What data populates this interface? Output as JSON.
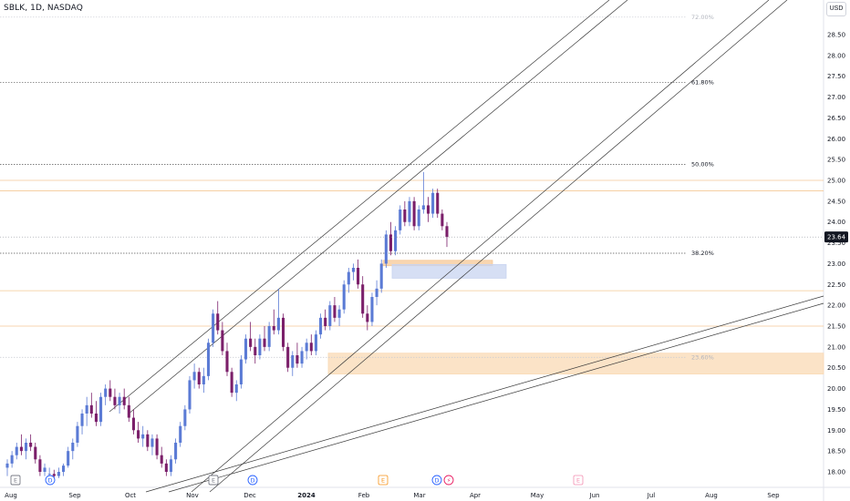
{
  "header": {
    "symbol": "SBLK, 1D, NASDAQ",
    "currency": "USD"
  },
  "price_axis": {
    "ticks": [
      "28.50",
      "28.00",
      "27.50",
      "27.00",
      "26.50",
      "26.00",
      "25.50",
      "25.00",
      "24.50",
      "24.00",
      "23.50",
      "23.00",
      "22.50",
      "22.00",
      "21.50",
      "21.00",
      "20.50",
      "20.00",
      "19.50",
      "19.00",
      "18.50",
      "18.00"
    ],
    "current_price": "23.64"
  },
  "time_axis": {
    "labels": [
      {
        "text": "Aug",
        "bold": false
      },
      {
        "text": "Sep",
        "bold": false
      },
      {
        "text": "Oct",
        "bold": false
      },
      {
        "text": "Nov",
        "bold": false
      },
      {
        "text": "Dec",
        "bold": false
      },
      {
        "text": "2024",
        "bold": true
      },
      {
        "text": "Feb",
        "bold": false
      },
      {
        "text": "Mar",
        "bold": false
      },
      {
        "text": "Apr",
        "bold": false
      },
      {
        "text": "May",
        "bold": false
      },
      {
        "text": "Jun",
        "bold": false
      },
      {
        "text": "Jul",
        "bold": false
      },
      {
        "text": "Aug",
        "bold": false
      },
      {
        "text": "Sep",
        "bold": false
      }
    ]
  },
  "fib_levels": [
    {
      "label": "72.00%",
      "price": 28.92,
      "faint": true
    },
    {
      "label": "61.80%",
      "price": 27.35,
      "faint": false
    },
    {
      "label": "50.00%",
      "price": 25.38,
      "faint": false
    },
    {
      "label": "38.20%",
      "price": 23.25,
      "faint": false
    },
    {
      "label": "23.60%",
      "price": 20.75,
      "faint": true
    }
  ],
  "horizontal_levels": [
    25.0,
    24.75,
    22.35,
    21.5
  ],
  "zones": [
    {
      "name": "upper-orange-zone",
      "price_top": 23.08,
      "price_bottom": 22.95,
      "color": "#f5c896"
    },
    {
      "name": "blue-zone",
      "price_top": 22.98,
      "price_bottom": 22.65,
      "color": "#c8d4f0"
    },
    {
      "name": "lower-orange-zone",
      "price_top": 20.85,
      "price_bottom": 20.35,
      "color": "#f9d9b4"
    }
  ],
  "events": [
    {
      "symbol": "E",
      "kind": "earnings",
      "color": "#787b86"
    },
    {
      "symbol": "D",
      "kind": "dividend",
      "color": "#2962ff"
    },
    {
      "symbol": "E",
      "kind": "earnings",
      "color": "#787b86"
    },
    {
      "symbol": "D",
      "kind": "dividend",
      "color": "#2962ff"
    },
    {
      "symbol": "E",
      "kind": "earnings",
      "color": "#f7931a"
    },
    {
      "symbol": "D",
      "kind": "dividend",
      "color": "#2962ff"
    },
    {
      "symbol": "⚡",
      "kind": "split",
      "color": "#e91e63"
    },
    {
      "symbol": "E",
      "kind": "earnings",
      "color": "#f48fb1"
    }
  ],
  "colors": {
    "up": "#5b7bd5",
    "down": "#7b1f6a",
    "trendline": "#3a3a3a",
    "level_orange": "#f5c896",
    "fib_dotted": "#555555",
    "price_tag": "#131722"
  },
  "chart_data": {
    "type": "candlestick",
    "title": "SBLK, 1D, NASDAQ",
    "unit": "USD",
    "ylim": [
      17.85,
      29.35
    ],
    "x_labels": [
      "Aug",
      "Sep",
      "Oct",
      "Nov",
      "Dec",
      "2024",
      "Feb",
      "Mar",
      "Apr",
      "May",
      "Jun",
      "Jul",
      "Aug",
      "Sep"
    ],
    "candles": [
      {
        "o": 18.1,
        "h": 18.3,
        "l": 17.9,
        "c": 18.2
      },
      {
        "o": 18.2,
        "h": 18.5,
        "l": 18.1,
        "c": 18.4
      },
      {
        "o": 18.4,
        "h": 18.7,
        "l": 18.3,
        "c": 18.6
      },
      {
        "o": 18.6,
        "h": 18.9,
        "l": 18.4,
        "c": 18.5
      },
      {
        "o": 18.5,
        "h": 18.8,
        "l": 18.3,
        "c": 18.7
      },
      {
        "o": 18.7,
        "h": 18.9,
        "l": 18.5,
        "c": 18.6
      },
      {
        "o": 18.6,
        "h": 18.7,
        "l": 18.2,
        "c": 18.3
      },
      {
        "o": 18.3,
        "h": 18.4,
        "l": 17.9,
        "c": 18.0
      },
      {
        "o": 18.0,
        "h": 18.2,
        "l": 17.9,
        "c": 18.1
      },
      {
        "o": 17.95,
        "h": 18.1,
        "l": 17.85,
        "c": 17.95
      },
      {
        "o": 17.95,
        "h": 18.05,
        "l": 17.85,
        "c": 17.9
      },
      {
        "o": 17.9,
        "h": 18.1,
        "l": 17.85,
        "c": 18.0
      },
      {
        "o": 18.0,
        "h": 18.2,
        "l": 17.9,
        "c": 18.15
      },
      {
        "o": 18.15,
        "h": 18.6,
        "l": 18.1,
        "c": 18.5
      },
      {
        "o": 18.5,
        "h": 18.8,
        "l": 18.3,
        "c": 18.7
      },
      {
        "o": 18.7,
        "h": 19.2,
        "l": 18.6,
        "c": 19.1
      },
      {
        "o": 19.1,
        "h": 19.5,
        "l": 18.9,
        "c": 19.4
      },
      {
        "o": 19.4,
        "h": 19.8,
        "l": 19.1,
        "c": 19.6
      },
      {
        "o": 19.6,
        "h": 19.9,
        "l": 19.3,
        "c": 19.4
      },
      {
        "o": 19.4,
        "h": 19.7,
        "l": 19.1,
        "c": 19.2
      },
      {
        "o": 19.2,
        "h": 19.9,
        "l": 19.1,
        "c": 19.8
      },
      {
        "o": 19.8,
        "h": 20.1,
        "l": 19.6,
        "c": 20.0
      },
      {
        "o": 20.0,
        "h": 20.2,
        "l": 19.7,
        "c": 19.8
      },
      {
        "o": 19.8,
        "h": 20.0,
        "l": 19.5,
        "c": 19.6
      },
      {
        "o": 19.6,
        "h": 19.9,
        "l": 19.4,
        "c": 19.8
      },
      {
        "o": 19.8,
        "h": 20.0,
        "l": 19.5,
        "c": 19.6
      },
      {
        "o": 19.6,
        "h": 19.8,
        "l": 19.2,
        "c": 19.3
      },
      {
        "o": 19.3,
        "h": 19.5,
        "l": 18.9,
        "c": 19.0
      },
      {
        "o": 19.0,
        "h": 19.2,
        "l": 18.7,
        "c": 18.8
      },
      {
        "o": 18.8,
        "h": 19.1,
        "l": 18.6,
        "c": 18.9
      },
      {
        "o": 18.9,
        "h": 19.0,
        "l": 18.5,
        "c": 18.6
      },
      {
        "o": 18.6,
        "h": 18.9,
        "l": 18.4,
        "c": 18.8
      },
      {
        "o": 18.8,
        "h": 18.9,
        "l": 18.3,
        "c": 18.4
      },
      {
        "o": 18.4,
        "h": 18.6,
        "l": 18.1,
        "c": 18.2
      },
      {
        "o": 18.2,
        "h": 18.3,
        "l": 17.9,
        "c": 18.0
      },
      {
        "o": 18.0,
        "h": 18.4,
        "l": 17.9,
        "c": 18.3
      },
      {
        "o": 18.3,
        "h": 18.8,
        "l": 18.2,
        "c": 18.7
      },
      {
        "o": 18.7,
        "h": 19.2,
        "l": 18.6,
        "c": 19.1
      },
      {
        "o": 19.1,
        "h": 19.6,
        "l": 19.0,
        "c": 19.5
      },
      {
        "o": 19.5,
        "h": 20.3,
        "l": 19.4,
        "c": 20.2
      },
      {
        "o": 20.2,
        "h": 20.6,
        "l": 20.0,
        "c": 20.4
      },
      {
        "o": 20.4,
        "h": 20.5,
        "l": 20.0,
        "c": 20.1
      },
      {
        "o": 20.1,
        "h": 20.5,
        "l": 19.9,
        "c": 20.3
      },
      {
        "o": 20.3,
        "h": 21.2,
        "l": 20.2,
        "c": 21.1
      },
      {
        "o": 21.1,
        "h": 21.9,
        "l": 21.0,
        "c": 21.8
      },
      {
        "o": 21.8,
        "h": 22.1,
        "l": 21.3,
        "c": 21.4
      },
      {
        "o": 21.4,
        "h": 21.6,
        "l": 20.8,
        "c": 20.9
      },
      {
        "o": 20.9,
        "h": 21.1,
        "l": 20.3,
        "c": 20.4
      },
      {
        "o": 20.4,
        "h": 20.5,
        "l": 19.8,
        "c": 19.9
      },
      {
        "o": 19.9,
        "h": 20.2,
        "l": 19.7,
        "c": 20.1
      },
      {
        "o": 20.1,
        "h": 20.8,
        "l": 20.0,
        "c": 20.7
      },
      {
        "o": 20.7,
        "h": 21.3,
        "l": 20.6,
        "c": 21.2
      },
      {
        "o": 21.2,
        "h": 21.6,
        "l": 20.9,
        "c": 21.0
      },
      {
        "o": 21.0,
        "h": 21.2,
        "l": 20.6,
        "c": 20.8
      },
      {
        "o": 20.8,
        "h": 21.3,
        "l": 20.7,
        "c": 21.2
      },
      {
        "o": 21.2,
        "h": 21.5,
        "l": 20.9,
        "c": 21.0
      },
      {
        "o": 21.0,
        "h": 21.6,
        "l": 20.9,
        "c": 21.5
      },
      {
        "o": 21.5,
        "h": 21.9,
        "l": 21.3,
        "c": 21.4
      },
      {
        "o": 21.4,
        "h": 22.4,
        "l": 21.3,
        "c": 21.7
      },
      {
        "o": 21.7,
        "h": 21.8,
        "l": 20.9,
        "c": 21.0
      },
      {
        "o": 21.0,
        "h": 21.1,
        "l": 20.4,
        "c": 20.5
      },
      {
        "o": 20.5,
        "h": 20.9,
        "l": 20.3,
        "c": 20.8
      },
      {
        "o": 20.8,
        "h": 21.1,
        "l": 20.5,
        "c": 20.6
      },
      {
        "o": 20.6,
        "h": 21.0,
        "l": 20.5,
        "c": 20.9
      },
      {
        "o": 20.9,
        "h": 21.2,
        "l": 20.7,
        "c": 21.1
      },
      {
        "o": 21.1,
        "h": 21.3,
        "l": 20.8,
        "c": 20.9
      },
      {
        "o": 20.9,
        "h": 21.4,
        "l": 20.8,
        "c": 21.3
      },
      {
        "o": 21.3,
        "h": 21.8,
        "l": 21.2,
        "c": 21.7
      },
      {
        "o": 21.7,
        "h": 21.9,
        "l": 21.4,
        "c": 21.5
      },
      {
        "o": 21.5,
        "h": 22.1,
        "l": 21.4,
        "c": 22.0
      },
      {
        "o": 22.0,
        "h": 22.2,
        "l": 21.6,
        "c": 21.7
      },
      {
        "o": 21.7,
        "h": 22.0,
        "l": 21.5,
        "c": 21.9
      },
      {
        "o": 21.9,
        "h": 22.6,
        "l": 21.8,
        "c": 22.5
      },
      {
        "o": 22.5,
        "h": 22.9,
        "l": 22.3,
        "c": 22.8
      },
      {
        "o": 22.8,
        "h": 23.0,
        "l": 22.6,
        "c": 22.9
      },
      {
        "o": 22.9,
        "h": 23.1,
        "l": 22.4,
        "c": 22.5
      },
      {
        "o": 22.5,
        "h": 22.7,
        "l": 21.7,
        "c": 21.8
      },
      {
        "o": 21.8,
        "h": 22.0,
        "l": 21.4,
        "c": 21.6
      },
      {
        "o": 21.6,
        "h": 22.3,
        "l": 21.5,
        "c": 22.2
      },
      {
        "o": 22.2,
        "h": 22.6,
        "l": 22.0,
        "c": 22.4
      },
      {
        "o": 22.4,
        "h": 23.1,
        "l": 22.3,
        "c": 23.0
      },
      {
        "o": 23.0,
        "h": 23.8,
        "l": 22.9,
        "c": 23.7
      },
      {
        "o": 23.7,
        "h": 24.0,
        "l": 23.2,
        "c": 23.3
      },
      {
        "o": 23.3,
        "h": 23.9,
        "l": 23.2,
        "c": 23.8
      },
      {
        "o": 23.8,
        "h": 24.4,
        "l": 23.7,
        "c": 24.3
      },
      {
        "o": 24.3,
        "h": 24.5,
        "l": 23.9,
        "c": 24.0
      },
      {
        "o": 24.0,
        "h": 24.6,
        "l": 23.9,
        "c": 24.5
      },
      {
        "o": 24.5,
        "h": 24.6,
        "l": 23.8,
        "c": 23.9
      },
      {
        "o": 23.9,
        "h": 24.4,
        "l": 23.8,
        "c": 24.3
      },
      {
        "o": 24.3,
        "h": 25.2,
        "l": 24.2,
        "c": 24.4
      },
      {
        "o": 24.4,
        "h": 24.6,
        "l": 24.0,
        "c": 24.2
      },
      {
        "o": 24.2,
        "h": 24.8,
        "l": 24.1,
        "c": 24.7
      },
      {
        "o": 24.7,
        "h": 24.8,
        "l": 24.1,
        "c": 24.2
      },
      {
        "o": 24.2,
        "h": 24.3,
        "l": 23.8,
        "c": 23.9
      },
      {
        "o": 23.9,
        "h": 24.0,
        "l": 23.4,
        "c": 23.64
      }
    ]
  }
}
